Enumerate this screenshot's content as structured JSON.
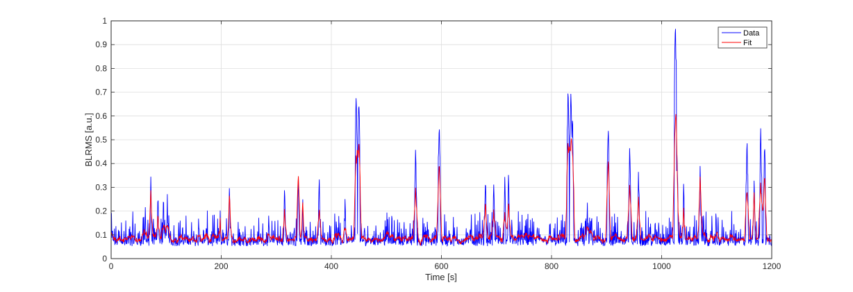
{
  "chart_data": {
    "type": "line",
    "xlabel": "Time [s]",
    "ylabel": "BLRMS [a.u.]",
    "xlim": [
      0,
      1200
    ],
    "ylim": [
      0,
      1
    ],
    "xticks": [
      0,
      200,
      400,
      600,
      800,
      1000,
      1200
    ],
    "yticks": [
      0,
      0.1,
      0.2,
      0.3,
      0.4,
      0.5,
      0.6,
      0.7,
      0.8,
      0.9,
      1
    ],
    "grid": true,
    "legend_position": "top-right",
    "baseline": 0.07,
    "series": [
      {
        "name": "Data",
        "color": "#0000ff",
        "peaks": [
          [
            62,
            0.22
          ],
          [
            72,
            0.35
          ],
          [
            85,
            0.28
          ],
          [
            95,
            0.28
          ],
          [
            102,
            0.28
          ],
          [
            198,
            0.22
          ],
          [
            215,
            0.32
          ],
          [
            315,
            0.31
          ],
          [
            340,
            0.36
          ],
          [
            348,
            0.27
          ],
          [
            378,
            0.36
          ],
          [
            425,
            0.26
          ],
          [
            445,
            0.69
          ],
          [
            450,
            0.68
          ],
          [
            553,
            0.46
          ],
          [
            596,
            0.58
          ],
          [
            680,
            0.35
          ],
          [
            695,
            0.32
          ],
          [
            715,
            0.35
          ],
          [
            722,
            0.38
          ],
          [
            830,
            0.72
          ],
          [
            835,
            0.71
          ],
          [
            838,
            0.61
          ],
          [
            865,
            0.26
          ],
          [
            903,
            0.56
          ],
          [
            942,
            0.49
          ],
          [
            958,
            0.38
          ],
          [
            1025,
            1.0
          ],
          [
            1028,
            0.45
          ],
          [
            1040,
            0.33
          ],
          [
            1070,
            0.4
          ],
          [
            1155,
            0.52
          ],
          [
            1168,
            0.33
          ],
          [
            1180,
            0.55
          ],
          [
            1187,
            0.5
          ]
        ]
      },
      {
        "name": "Fit",
        "color": "#ff0000",
        "peaks": [
          [
            72,
            0.29
          ],
          [
            85,
            0.2
          ],
          [
            198,
            0.18
          ],
          [
            215,
            0.28
          ],
          [
            315,
            0.22
          ],
          [
            340,
            0.36
          ],
          [
            348,
            0.25
          ],
          [
            378,
            0.22
          ],
          [
            445,
            0.44
          ],
          [
            450,
            0.5
          ],
          [
            553,
            0.3
          ],
          [
            596,
            0.41
          ],
          [
            680,
            0.25
          ],
          [
            695,
            0.21
          ],
          [
            715,
            0.2
          ],
          [
            722,
            0.25
          ],
          [
            830,
            0.5
          ],
          [
            835,
            0.49
          ],
          [
            838,
            0.46
          ],
          [
            903,
            0.42
          ],
          [
            942,
            0.32
          ],
          [
            958,
            0.27
          ],
          [
            1025,
            0.52
          ],
          [
            1028,
            0.3
          ],
          [
            1040,
            0.22
          ],
          [
            1070,
            0.35
          ],
          [
            1155,
            0.3
          ],
          [
            1168,
            0.28
          ],
          [
            1180,
            0.32
          ],
          [
            1187,
            0.36
          ]
        ]
      }
    ]
  }
}
